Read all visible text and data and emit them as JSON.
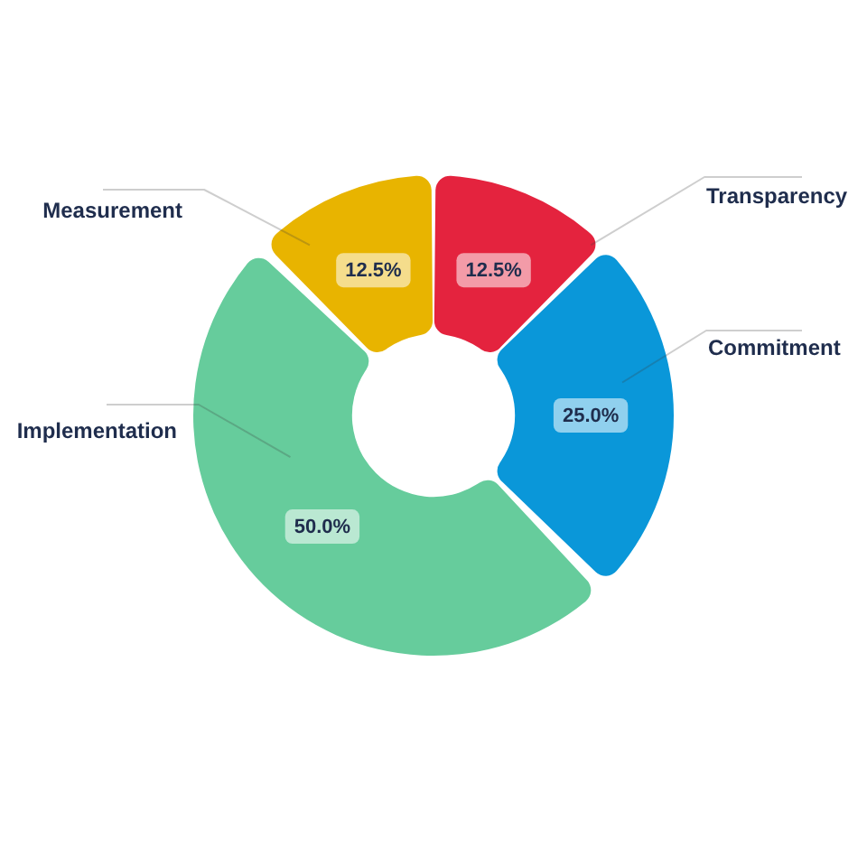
{
  "chart_data": {
    "type": "donut",
    "categories": [
      "Transparency",
      "Commitment",
      "Implementation",
      "Measurement"
    ],
    "values": [
      12.5,
      25,
      50,
      12.5
    ],
    "colors": [
      "#e4233e",
      "#0a97d9",
      "#66cc9c",
      "#e8b400"
    ],
    "value_labels": [
      "12.5%",
      "25.0%",
      "50.0%",
      "12.5%"
    ]
  }
}
